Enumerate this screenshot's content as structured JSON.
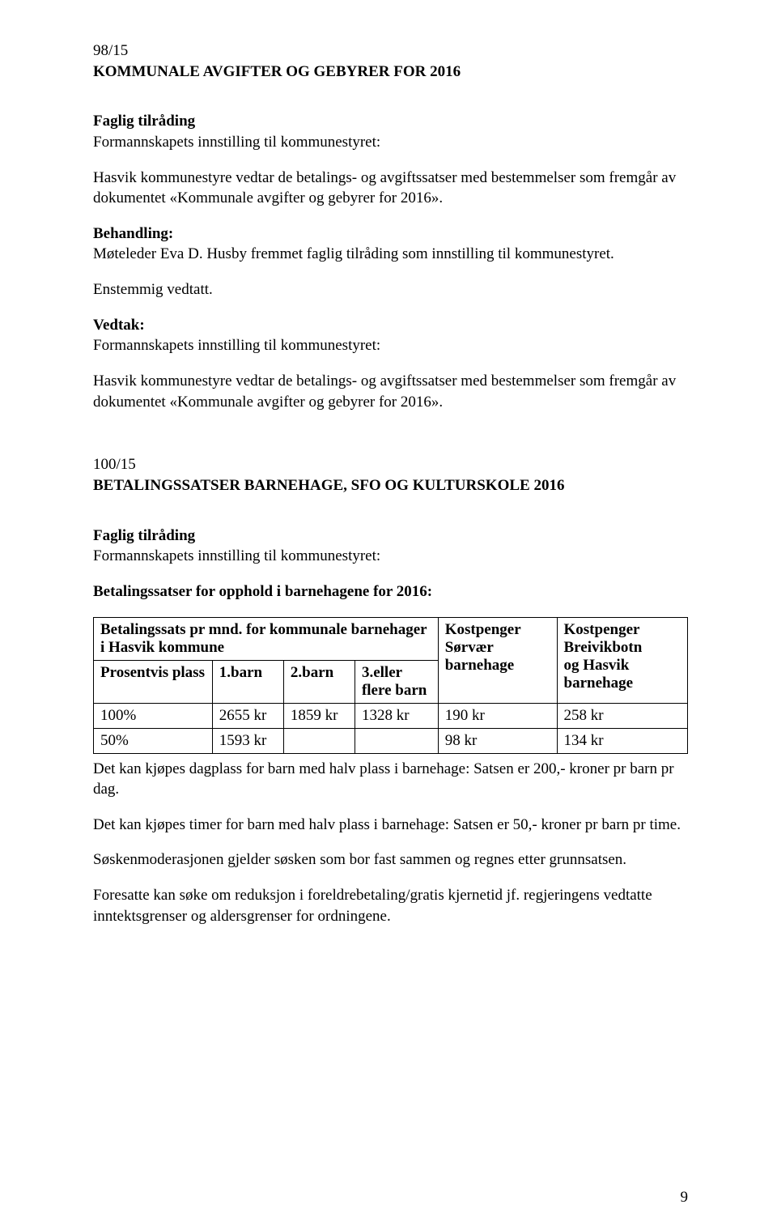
{
  "page_number": "9",
  "section1": {
    "case_no": "98/15",
    "title": "KOMMUNALE AVGIFTER OG GEBYRER FOR 2016",
    "faglig_label": "Faglig tilråding",
    "formann_line": "Formannskapets innstilling til kommunestyret:",
    "body1_a": "Hasvik kommunestyre vedtar de betalings- og avgiftssatser med bestemmelser som fremgår av",
    "body1_b": "dokumentet «Kommunale avgifter og gebyrer for 2016».",
    "behandling_label": "Behandling:",
    "behandling_text": "Møteleder Eva D. Husby fremmet faglig tilråding som innstilling til kommunestyret.",
    "enstemmig": "Enstemmig vedtatt.",
    "vedtak_label": "Vedtak:",
    "vedtak_formann": "Formannskapets innstilling til kommunestyret:",
    "body2_a": "Hasvik kommunestyre vedtar de betalings- og avgiftssatser med bestemmelser som fremgår av",
    "body2_b": "dokumentet «Kommunale avgifter og gebyrer for 2016»."
  },
  "section2": {
    "case_no": "100/15",
    "title": "BETALINGSSATSER BARNEHAGE, SFO OG KULTURSKOLE 2016",
    "faglig_label": "Faglig tilråding",
    "formann_line": "Formannskapets innstilling til kommunestyret:",
    "subheading": "Betalingssatser for opphold i barnehagene for 2016:"
  },
  "table": {
    "header_left_a": "Betalingssats pr mnd. for kommunale barnehager",
    "header_left_b": "i Hasvik kommune",
    "header_col_e_a": "Kostpenger",
    "header_col_e_b": "Sørvær",
    "header_col_e_c": "barnehage",
    "header_col_f_a": "Kostpenger",
    "header_col_f_b": "Breivikbotn",
    "header_col_f_c": "og Hasvik",
    "header_col_f_d": "barnehage",
    "row2_a": "Prosentvis plass",
    "row2_b": "1.barn",
    "row2_c": "2.barn",
    "row2_d_a": "3.eller",
    "row2_d_b": "flere barn",
    "row3_a": "100%",
    "row3_b": "2655 kr",
    "row3_c": "1859 kr",
    "row3_d": "1328 kr",
    "row3_e": "190 kr",
    "row3_f": "258 kr",
    "row4_a": "50%",
    "row4_b": "1593 kr",
    "row4_c": "",
    "row4_d": "",
    "row4_e": "98 kr",
    "row4_f": "134 kr",
    "border_color": "#000000"
  },
  "footer": {
    "p1_a": "Det kan kjøpes dagplass for barn med halv plass i barnehage: Satsen er 200,- kroner pr barn pr",
    "p1_b": "dag.",
    "p2": "Det kan kjøpes timer for barn med halv plass i barnehage: Satsen er 50,- kroner pr barn pr time.",
    "p3": "Søskenmoderasjonen gjelder søsken som bor fast sammen og regnes etter grunnsatsen.",
    "p4_a": "Foresatte kan søke om reduksjon i foreldrebetaling/gratis kjernetid jf. regjeringens vedtatte",
    "p4_b": "inntektsgrenser og aldersgrenser for ordningene."
  }
}
